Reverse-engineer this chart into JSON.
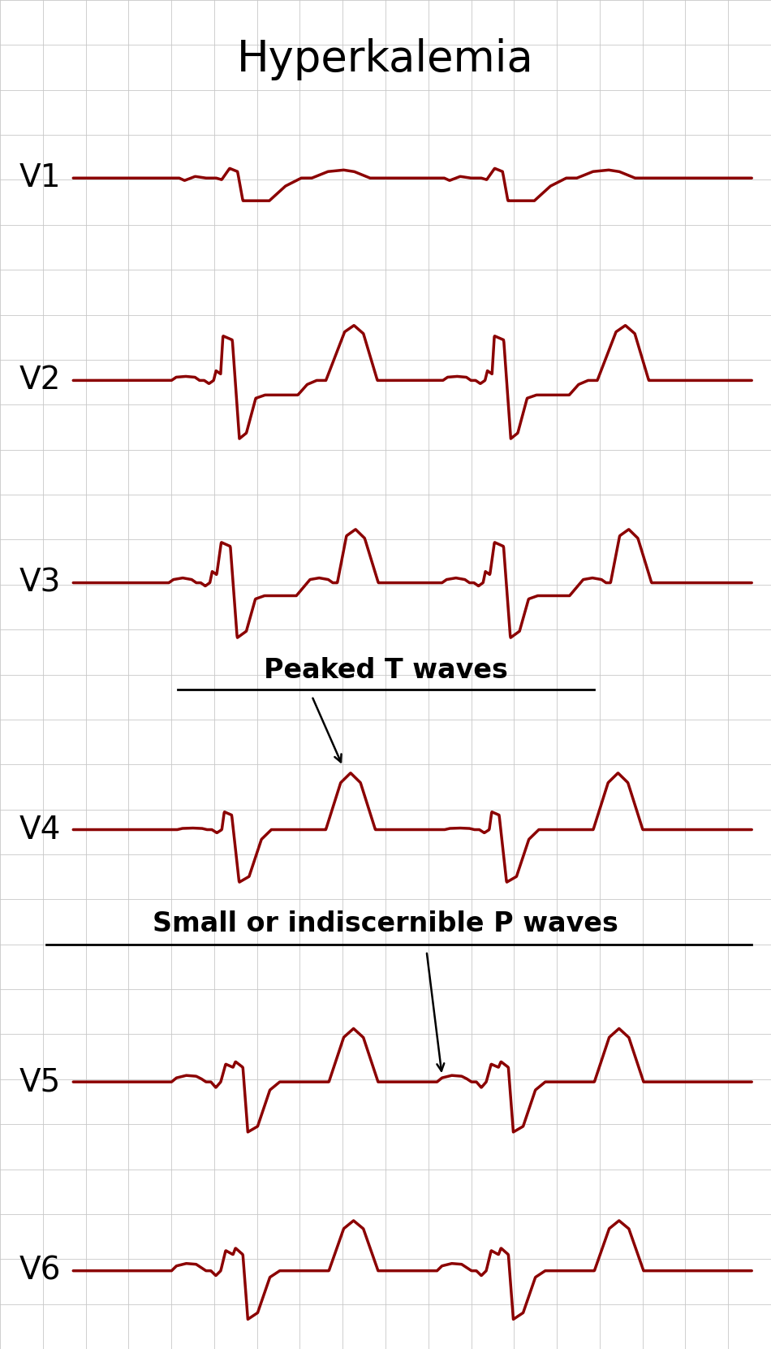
{
  "title": "Hyperkalemia",
  "title_fontsize": 38,
  "ecg_color": "#8B0000",
  "ecg_linewidth": 2.5,
  "bg_color": "#ffffff",
  "grid_color": "#c8c8c8",
  "label_color": "#000000",
  "leads": [
    "V1",
    "V2",
    "V3",
    "V4",
    "V5",
    "V6"
  ],
  "annotation1_text": "Peaked T waves",
  "annotation1_fontsize": 24,
  "annotation2_text": "Small or indiscernible P waves",
  "annotation2_fontsize": 24,
  "fig_width": 9.5,
  "fig_height": 16.61,
  "lead_label_fontsize": 28
}
